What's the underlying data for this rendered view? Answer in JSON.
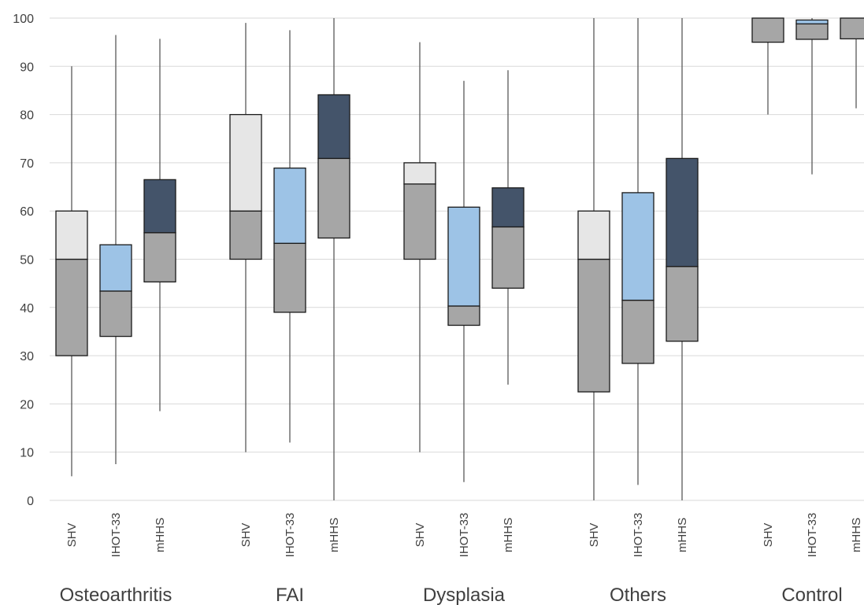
{
  "chart_data": {
    "type": "box",
    "ylim": [
      0,
      100
    ],
    "yticks": [
      0,
      10,
      20,
      30,
      40,
      50,
      60,
      70,
      80,
      90,
      100
    ],
    "grid": true,
    "groups": [
      {
        "name": "Osteoarthritis",
        "boxes": [
          {
            "label": "SHV",
            "min": 5,
            "q1": 30,
            "median": 50,
            "q3": 60,
            "max": 90
          },
          {
            "label": "IHOT-33",
            "min": 7.5,
            "q1": 34,
            "median": 43.4,
            "q3": 53,
            "max": 96.5
          },
          {
            "label": "mHHS",
            "min": 18.5,
            "q1": 45.3,
            "median": 55.5,
            "q3": 66.5,
            "max": 95.7
          }
        ]
      },
      {
        "name": "FAI",
        "boxes": [
          {
            "label": "SHV",
            "min": 10,
            "q1": 50,
            "median": 60,
            "q3": 80,
            "max": 99
          },
          {
            "label": "IHOT-33",
            "min": 12,
            "q1": 39,
            "median": 53.3,
            "q3": 68.9,
            "max": 97.5
          },
          {
            "label": "mHHS",
            "min": 0,
            "q1": 54.4,
            "median": 70.9,
            "q3": 84.1,
            "max": 100
          }
        ]
      },
      {
        "name": "Dysplasia",
        "boxes": [
          {
            "label": "SHV",
            "min": 10,
            "q1": 50,
            "median": 65.6,
            "q3": 70,
            "max": 95
          },
          {
            "label": "IHOT-33",
            "min": 3.8,
            "q1": 36.3,
            "median": 40.3,
            "q3": 60.8,
            "max": 87
          },
          {
            "label": "mHHS",
            "min": 24,
            "q1": 44,
            "median": 56.7,
            "q3": 64.8,
            "max": 89.2
          }
        ]
      },
      {
        "name": "Others",
        "boxes": [
          {
            "label": "SHV",
            "min": 0,
            "q1": 22.5,
            "median": 50,
            "q3": 60,
            "max": 100
          },
          {
            "label": "IHOT-33",
            "min": 3.2,
            "q1": 28.4,
            "median": 41.5,
            "q3": 63.8,
            "max": 100
          },
          {
            "label": "mHHS",
            "min": 0,
            "q1": 33,
            "median": 48.5,
            "q3": 70.9,
            "max": 100
          }
        ]
      },
      {
        "name": "Control",
        "boxes": [
          {
            "label": "SHV",
            "min": 80,
            "q1": 95,
            "median": 100,
            "q3": 100,
            "max": 100
          },
          {
            "label": "IHOT-33",
            "min": 67.6,
            "q1": 95.6,
            "median": 98.8,
            "q3": 99.6,
            "max": 100
          },
          {
            "label": "mHHS",
            "min": 81.3,
            "q1": 95.7,
            "median": 100,
            "q3": 100,
            "max": 100
          }
        ]
      }
    ],
    "colors": {
      "lower_box": "#a6a6a6",
      "SHV_upper": "#e6e6e6",
      "IHOT-33_upper": "#9dc3e6",
      "mHHS_upper": "#44546a",
      "gridline": "#d9d9d9",
      "whisker": "#595959"
    }
  }
}
